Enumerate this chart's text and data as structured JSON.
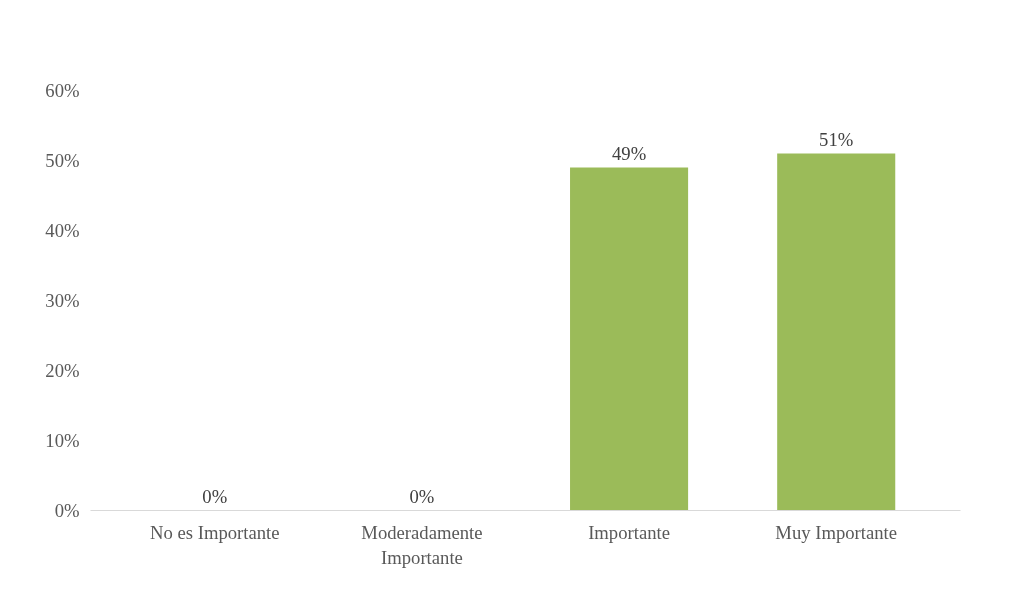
{
  "chart_data": {
    "type": "bar",
    "categories": [
      "No es Importante",
      "Moderadamente Importante",
      "Importante",
      "Muy Importante"
    ],
    "values": [
      0,
      0,
      49,
      51
    ],
    "color": "#9bbb59",
    "value_labels": [
      "0%",
      "0%",
      "49%",
      "51%"
    ],
    "ylim": [
      0,
      60
    ],
    "yticks": [
      {
        "value": 0,
        "label": "0%"
      },
      {
        "value": 10,
        "label": "10%"
      },
      {
        "value": 20,
        "label": "20%"
      },
      {
        "value": 30,
        "label": "30%"
      },
      {
        "value": 40,
        "label": "40%"
      },
      {
        "value": 50,
        "label": "50%"
      },
      {
        "value": 60,
        "label": "60%"
      }
    ],
    "grid": false
  }
}
